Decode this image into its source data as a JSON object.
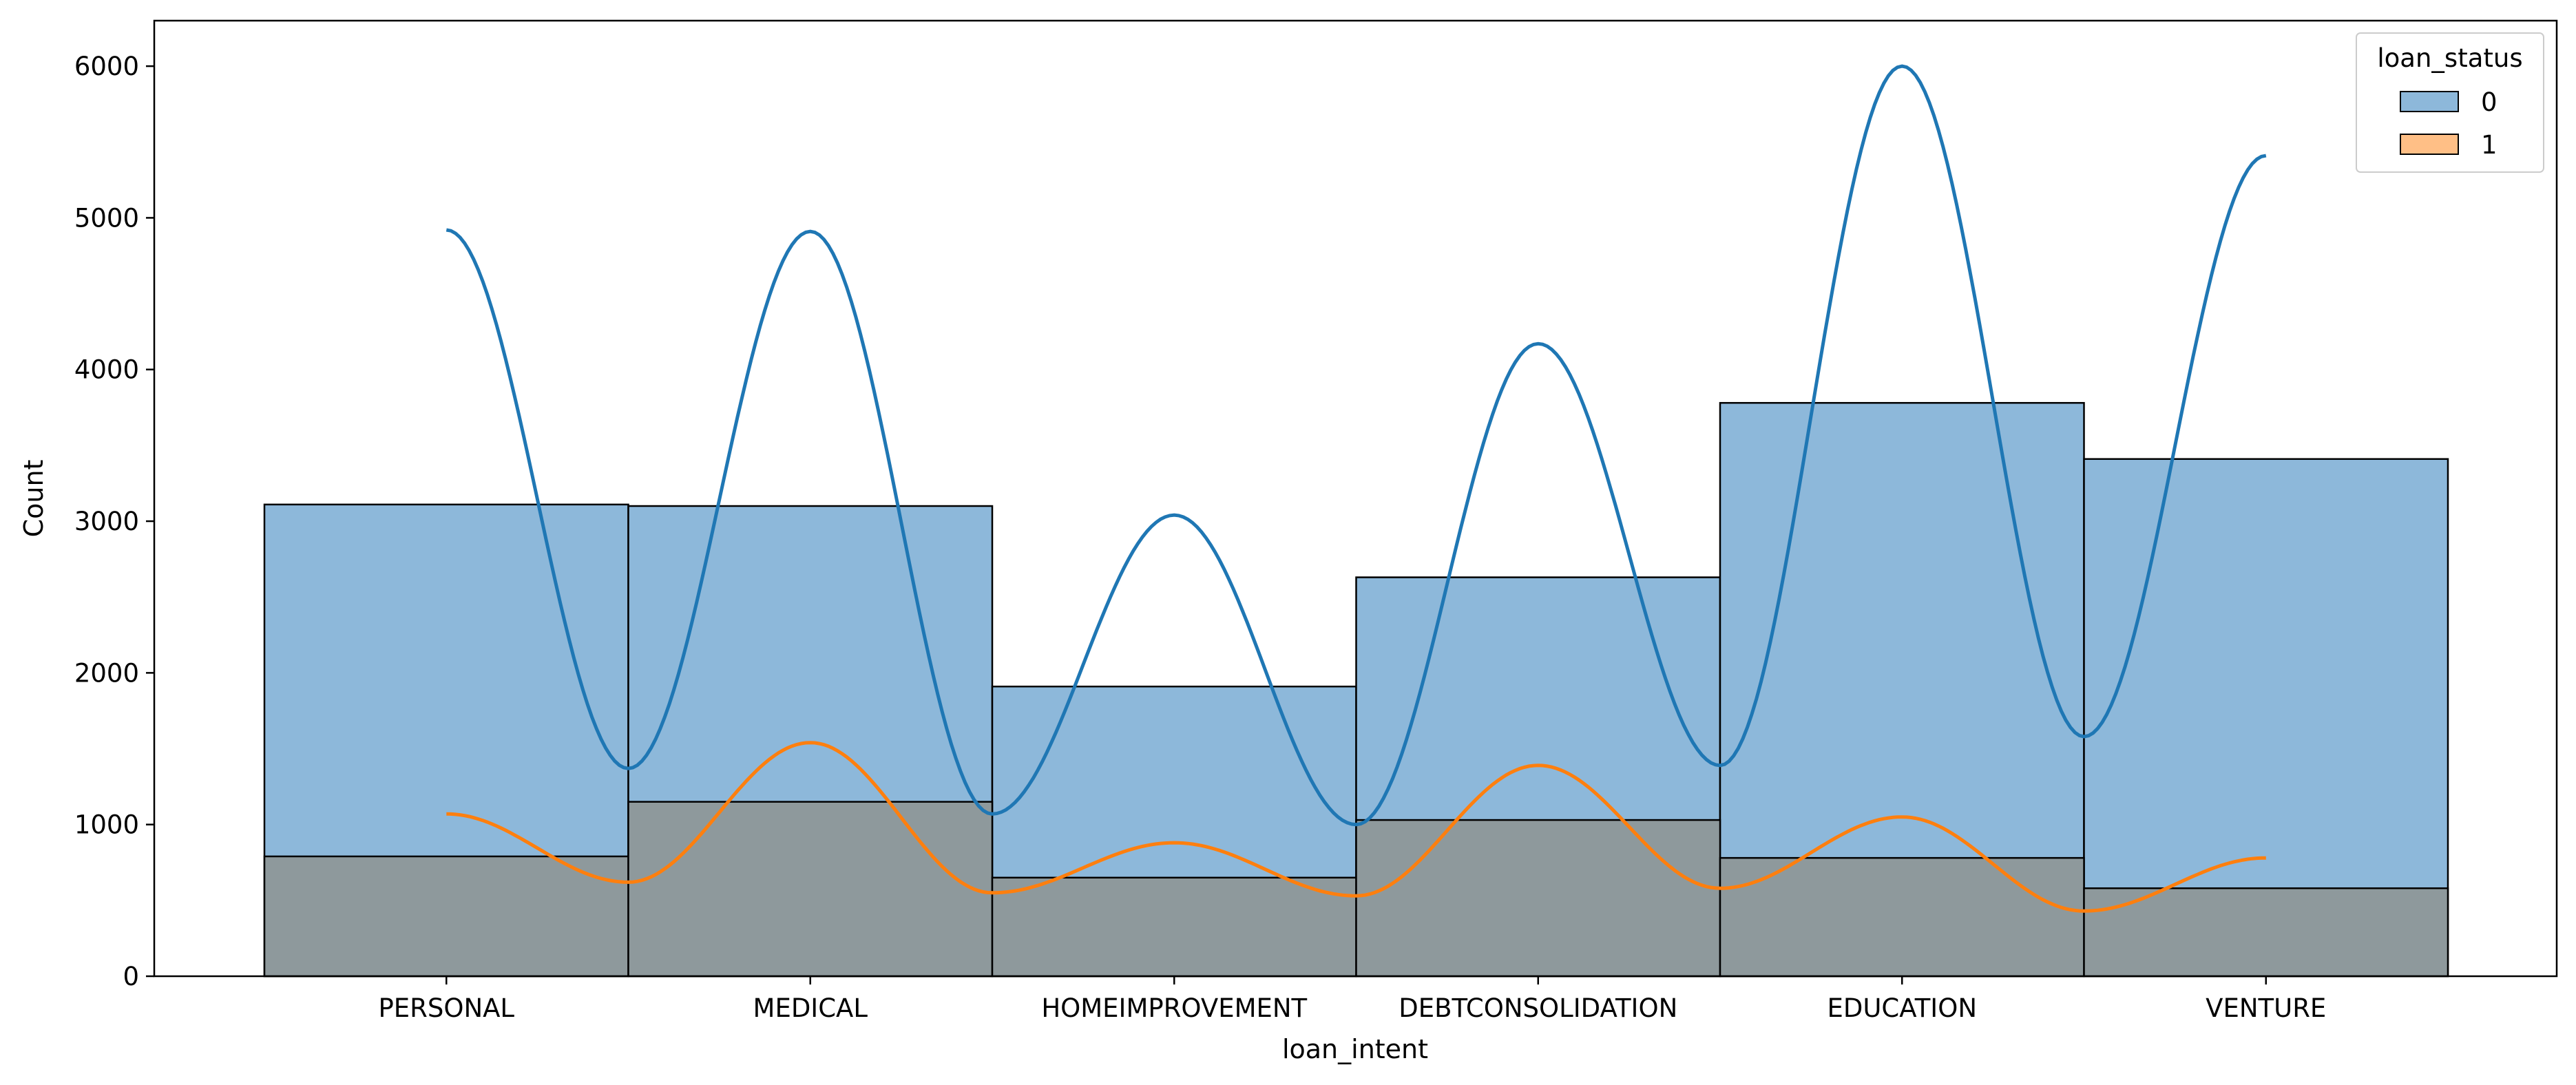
{
  "chart_data": {
    "type": "bar",
    "xlabel": "loan_intent",
    "ylabel": "Count",
    "ylim": [
      0,
      6300
    ],
    "yticks": [
      0,
      1000,
      2000,
      3000,
      4000,
      5000,
      6000
    ],
    "categories": [
      "PERSONAL",
      "MEDICAL",
      "HOMEIMPROVEMENT",
      "DEBTCONSOLIDATION",
      "EDUCATION",
      "VENTURE"
    ],
    "legend": {
      "title": "loan_status",
      "position": "top-right"
    },
    "series": [
      {
        "name": "0",
        "color": "#1f77b4",
        "values": [
          3110,
          3100,
          1910,
          2630,
          3780,
          3410
        ],
        "kde": [
          4920,
          1370,
          4910,
          1070,
          3040,
          1000,
          4170,
          1390,
          6000,
          1580,
          5410
        ]
      },
      {
        "name": "1",
        "color": "#ff7f0e",
        "values": [
          790,
          1150,
          650,
          1030,
          780,
          580
        ],
        "kde": [
          1070,
          620,
          1540,
          550,
          880,
          530,
          1390,
          580,
          1050,
          430,
          780
        ]
      }
    ],
    "kde_x": [
      0,
      0.5,
      1,
      1.5,
      2,
      2.5,
      3,
      3.5,
      4,
      4.5,
      5
    ]
  },
  "colors": {
    "overlap_fill": "#8e999c",
    "series0_bar_fill": "#8db8da",
    "edge": "#000000"
  }
}
